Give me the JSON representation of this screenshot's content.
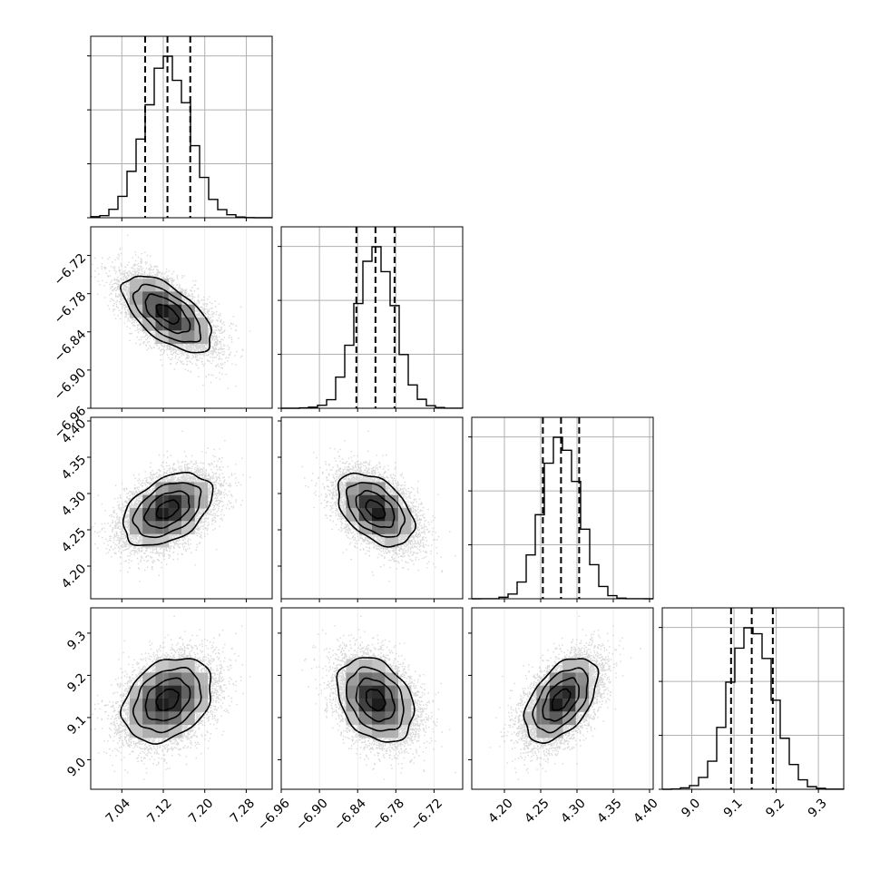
{
  "chart_data": {
    "type": "corner",
    "parameters": [
      {
        "ticks": [
          7.04,
          7.12,
          7.2,
          7.28
        ],
        "tick_labels": [
          "7.04",
          "7.12",
          "7.20",
          "7.28"
        ],
        "range": [
          6.98,
          7.33
        ],
        "quantiles": [
          7.085,
          7.128,
          7.172
        ],
        "mean": 7.128,
        "sd": 0.043
      },
      {
        "ticks": [
          -6.96,
          -6.9,
          -6.84,
          -6.78,
          -6.72
        ],
        "tick_labels": [
          "−6.96",
          "−6.90",
          "−6.84",
          "−6.78",
          "−6.72"
        ],
        "range": [
          -6.96,
          -6.675
        ],
        "quantiles": [
          -6.842,
          -6.812,
          -6.782
        ],
        "mean": -6.812,
        "sd": 0.03
      },
      {
        "ticks": [
          4.2,
          4.25,
          4.3,
          4.35,
          4.4
        ],
        "tick_labels": [
          "4.20",
          "4.25",
          "4.30",
          "4.35",
          "4.40"
        ],
        "range": [
          4.155,
          4.405
        ],
        "quantiles": [
          4.253,
          4.278,
          4.303
        ],
        "mean": 4.278,
        "sd": 0.025
      },
      {
        "ticks": [
          9.0,
          9.1,
          9.2,
          9.3
        ],
        "tick_labels": [
          "9.0",
          "9.1",
          "9.2",
          "9.3"
        ],
        "range": [
          8.93,
          9.36
        ],
        "quantiles": [
          9.093,
          9.142,
          9.192
        ],
        "mean": 9.142,
        "sd": 0.05
      }
    ],
    "correlations": [
      {
        "pair": [
          0,
          1
        ],
        "rho": -0.62
      },
      {
        "pair": [
          0,
          2
        ],
        "rho": 0.42
      },
      {
        "pair": [
          1,
          2
        ],
        "rho": -0.45
      },
      {
        "pair": [
          0,
          3
        ],
        "rho": 0.3
      },
      {
        "pair": [
          1,
          3
        ],
        "rho": -0.3
      },
      {
        "pair": [
          2,
          3
        ],
        "rho": 0.5
      }
    ],
    "contour_levels_sigma": [
      0.5,
      1.0,
      1.5,
      2.0
    ],
    "grid": true
  }
}
